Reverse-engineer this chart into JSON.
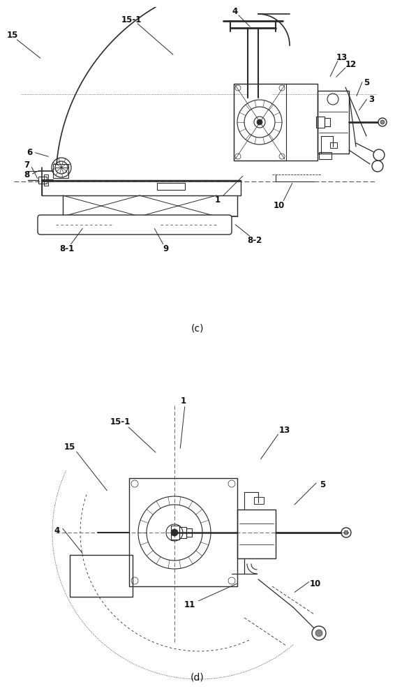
{
  "figure_width": 5.66,
  "figure_height": 10.0,
  "dpi": 100,
  "bg_color": "#ffffff",
  "lc": "#2a2a2a",
  "lc2": "#555555"
}
